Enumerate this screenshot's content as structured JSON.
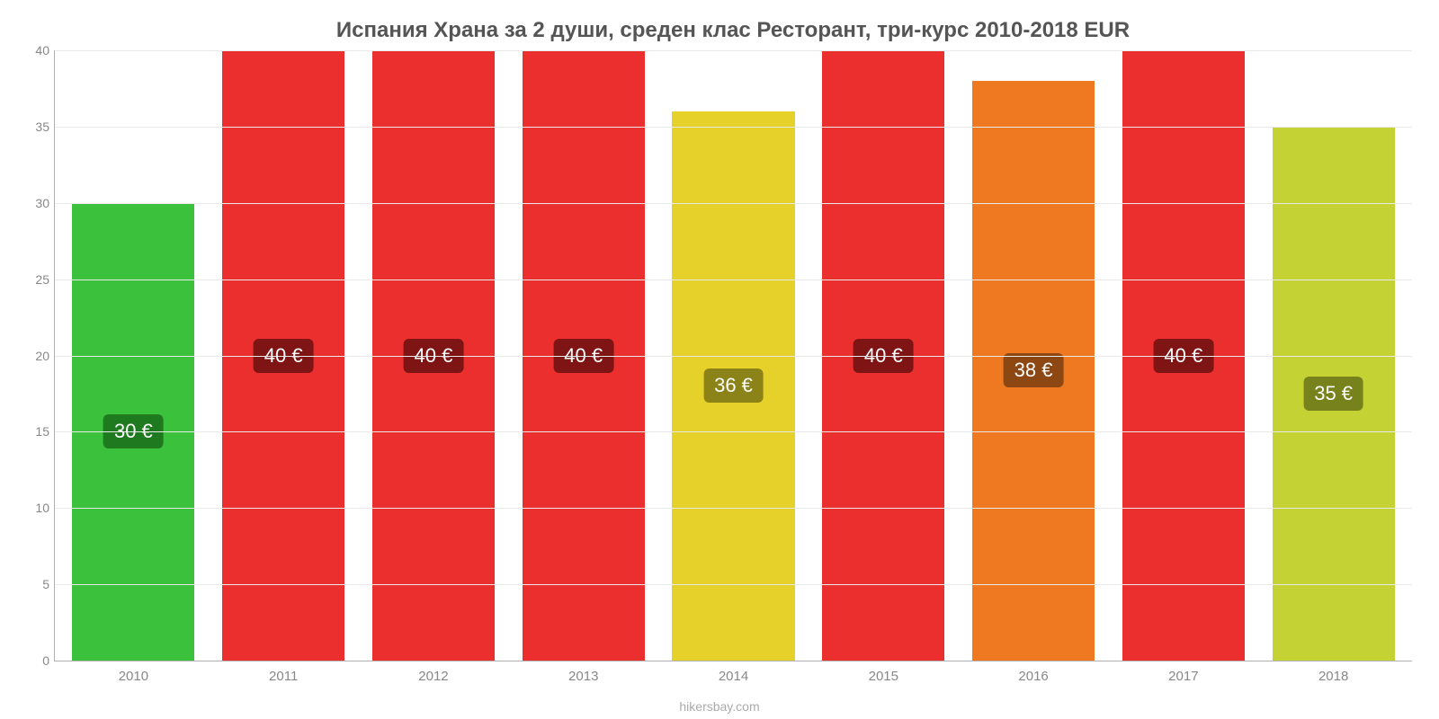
{
  "chart": {
    "type": "bar",
    "title": "Испания Храна за 2 души, среден клас Ресторант, три-курс 2010-2018 EUR",
    "title_fontsize": 24,
    "title_color": "#555555",
    "background_color": "#ffffff",
    "grid_color": "#e9e9e9",
    "axis_color": "#b0b0b0",
    "tick_label_color": "#888888",
    "tick_label_fontsize": 14,
    "x_tick_fontsize": 15,
    "ylim": [
      0,
      40
    ],
    "ytick_step": 5,
    "yticks": [
      0,
      5,
      10,
      15,
      20,
      25,
      30,
      35,
      40
    ],
    "bar_width_ratio": 0.88,
    "categories": [
      "2010",
      "2011",
      "2012",
      "2013",
      "2014",
      "2015",
      "2016",
      "2017",
      "2018"
    ],
    "values": [
      30,
      40,
      40,
      40,
      36,
      40,
      38,
      40,
      35
    ],
    "value_labels": [
      "30 €",
      "40 €",
      "40 €",
      "40 €",
      "36 €",
      "40 €",
      "38 €",
      "40 €",
      "35 €"
    ],
    "bar_colors": [
      "#3bc13b",
      "#eb2f2f",
      "#eb2f2f",
      "#eb2f2f",
      "#e6d02a",
      "#eb2f2f",
      "#ef7920",
      "#eb2f2f",
      "#c5d233"
    ],
    "badge_colors": [
      "#1f7a1f",
      "#7e1414",
      "#7e1414",
      "#7e1414",
      "#8c8318",
      "#7e1414",
      "#8c4712",
      "#7e1414",
      "#78821c"
    ],
    "badge_text_color": "#ffffff",
    "badge_fontsize": 22,
    "credit": "hikersbay.com",
    "credit_color": "#aaaaaa",
    "credit_fontsize": 14
  }
}
